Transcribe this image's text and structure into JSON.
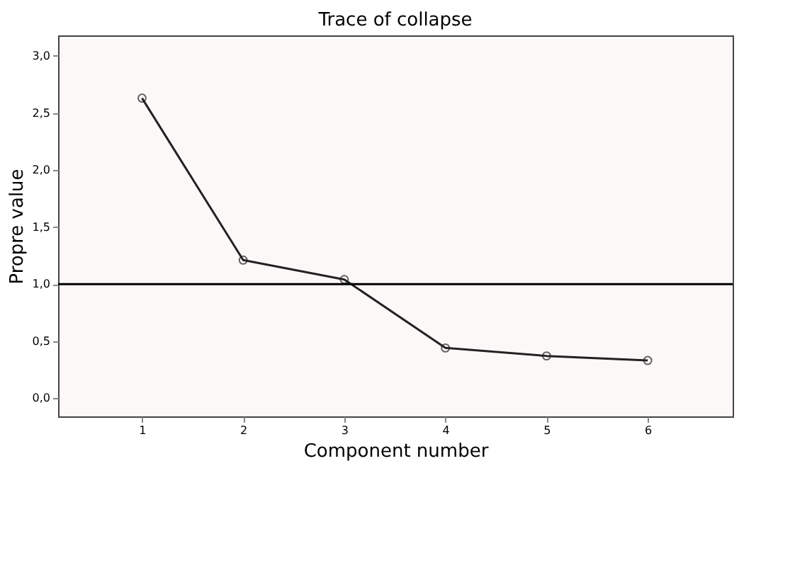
{
  "chart_data": {
    "type": "line",
    "title": "Trace of collapse",
    "xlabel": "Component number",
    "ylabel": "Propre value",
    "x": [
      1,
      2,
      3,
      4,
      5,
      6
    ],
    "series": [
      {
        "color": "#222222",
        "values": [
          2.63,
          1.21,
          1.04,
          0.44,
          0.37,
          0.33
        ]
      }
    ],
    "xlim": [
      0.17,
      6.84
    ],
    "xticks": [
      1,
      2,
      3,
      4,
      5,
      6
    ],
    "ylim": [
      -0.16,
      3.18
    ],
    "yticks": [
      {
        "value": 0,
        "label": "0,0"
      },
      {
        "value": 0.5,
        "label": "0,5"
      },
      {
        "value": 1,
        "label": "1,0"
      },
      {
        "value": 1.5,
        "label": "1,5"
      },
      {
        "value": 2,
        "label": "2,0"
      },
      {
        "value": 2.5,
        "label": "2,5"
      },
      {
        "value": 3,
        "label": "3,0"
      }
    ],
    "ref_lines": [
      {
        "axis": "y",
        "value": 1,
        "color": "#000000"
      }
    ],
    "marker": "circle",
    "line_style": "solid",
    "grid": false
  }
}
